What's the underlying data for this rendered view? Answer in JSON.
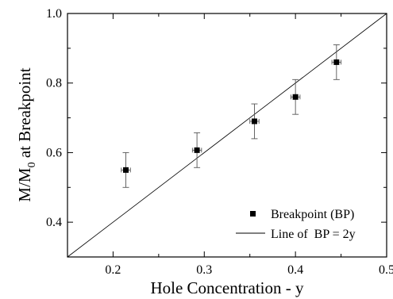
{
  "chart_data": {
    "type": "scatter",
    "xlabel": "Hole Concentration - y",
    "ylabel_main": "M/M",
    "ylabel_sub": "0",
    "ylabel_rest": " at Breakpoint",
    "xlim": [
      0.15,
      0.5
    ],
    "ylim": [
      0.3,
      1.0
    ],
    "x_ticks": [
      0.2,
      0.3,
      0.4,
      0.5
    ],
    "x_tick_labels": [
      "0.2",
      "0.3",
      "0.4",
      "0.5"
    ],
    "y_ticks": [
      0.4,
      0.6,
      0.8,
      1.0
    ],
    "y_tick_labels": [
      "0.4",
      "0.6",
      "0.8",
      "1.0"
    ],
    "grid": false,
    "legend_position": "bottom-right",
    "series": [
      {
        "name": "Breakpoint (BP)",
        "kind": "points",
        "marker": "square",
        "color": "#000000",
        "x": [
          0.214,
          0.292,
          0.355,
          0.4,
          0.445
        ],
        "y": [
          0.55,
          0.607,
          0.69,
          0.76,
          0.86
        ],
        "xerr": [
          0.005,
          0.005,
          0.005,
          0.005,
          0.005
        ],
        "yerr": [
          0.05,
          0.05,
          0.05,
          0.05,
          0.05
        ]
      },
      {
        "name": "Line of  BP = 2y",
        "kind": "line",
        "color": "#000000",
        "x": [
          0.15,
          0.5
        ],
        "y": [
          0.3,
          1.0
        ]
      }
    ]
  }
}
